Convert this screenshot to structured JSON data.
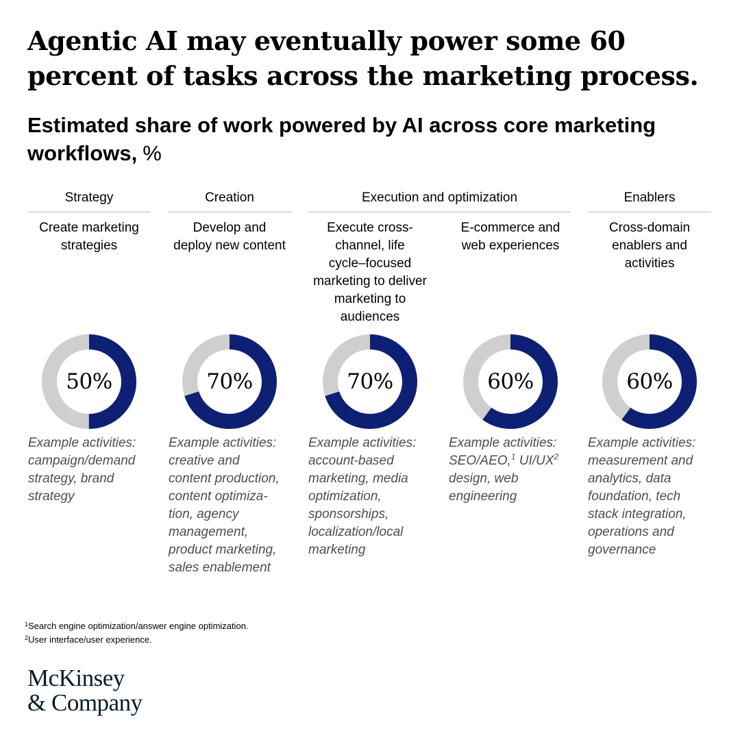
{
  "headline": "Agentic AI may eventually power some 60 percent of tasks across the marketing process.",
  "subtitle": {
    "text": "Estimated share of work powered by AI across core marketing workflows,",
    "unit": "%"
  },
  "colors": {
    "ai_share": "#0e2074",
    "remainder": "#cfcfcf",
    "rule": "#b7b7b7",
    "example_text": "#4d4d4d"
  },
  "categories": [
    {
      "label": "Strategy"
    },
    {
      "label": "Creation"
    },
    {
      "label": "Execution and optimization"
    },
    {
      "label": "Enablers"
    }
  ],
  "columns": [
    {
      "description_lines": [
        "Create marketing",
        "strategies"
      ],
      "value_label": "50%",
      "example_lines": [
        "Example activities:",
        "campaign/demand",
        "strategy, brand",
        "strategy"
      ]
    },
    {
      "description_lines": [
        "Develop and",
        "deploy new content"
      ],
      "value_label": "70%",
      "example_lines": [
        "Example activities:",
        "creative and",
        "content production,",
        "content optimiza-",
        "tion, agency",
        "management,",
        "product marketing,",
        "sales enablement"
      ]
    },
    {
      "description_lines": [
        "Execute cross-",
        "channel, life",
        "cycle–focused",
        "marketing to deliver",
        "marketing to",
        "audiences"
      ],
      "value_label": "70%",
      "example_lines": [
        "Example activities:",
        "account-based",
        "marketing, media",
        "optimization,",
        "sponsorships,",
        "localization/local",
        "marketing"
      ]
    },
    {
      "description_lines": [
        "E-commerce and",
        "web experiences"
      ],
      "value_label": "60%",
      "example_lines": [
        "Example activities:",
        "SEO/AEO,",
        "1",
        " UI/UX",
        "2",
        "design, web",
        "engineering"
      ]
    },
    {
      "description_lines": [
        "Cross-domain",
        "enablers and",
        "activities"
      ],
      "value_label": "60%",
      "example_lines": [
        "Example activities:",
        "measurement and",
        "analytics, data",
        "foundation, tech",
        "stack integration,",
        "operations and",
        "governance"
      ]
    }
  ],
  "footnotes": [
    {
      "marker": "1",
      "text": "Search engine optimization/answer engine optimization."
    },
    {
      "marker": "2",
      "text": "User interface/user experience."
    }
  ],
  "logo": {
    "line1": "McKinsey",
    "line2": "& Company"
  },
  "chart_data": {
    "type": "pie",
    "categories": [
      "Create marketing strategies",
      "Develop and deploy new content",
      "Execute cross-channel, life cycle–focused marketing to deliver marketing to audiences",
      "E-commerce and web experiences",
      "Cross-domain enablers and activities"
    ],
    "groups": [
      "Strategy",
      "Creation",
      "Execution and optimization",
      "Execution and optimization",
      "Enablers"
    ],
    "values": [
      50,
      70,
      70,
      60,
      60
    ],
    "unit": "%"
  }
}
